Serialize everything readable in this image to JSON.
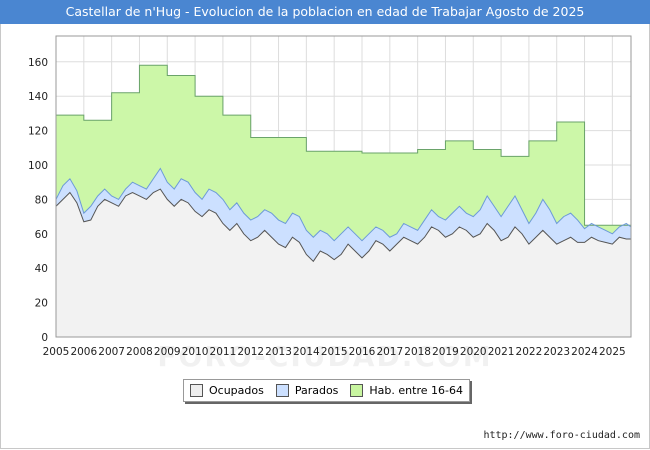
{
  "title": "Castellar de n'Hug - Evolucion de la poblacion en edad de Trabajar Agosto de 2025",
  "watermark": "FORO-CIUDAD.COM",
  "site_url": "http://www.foro-ciudad.com",
  "legend": [
    {
      "label": "Ocupados",
      "color": "#eeeeee"
    },
    {
      "label": "Parados",
      "color": "#cce0ff"
    },
    {
      "label": "Hab. entre 16-64",
      "color": "#c8f5a0"
    }
  ],
  "chart_data": {
    "type": "area",
    "xlim": [
      2005,
      2025.67
    ],
    "ylim": [
      0,
      175
    ],
    "y_ticks": [
      0,
      20,
      40,
      60,
      80,
      100,
      120,
      140,
      160
    ],
    "x_ticks": [
      "2005",
      "2006",
      "2007",
      "2008",
      "2009",
      "2010",
      "2011",
      "2012",
      "2013",
      "2014",
      "2015",
      "2016",
      "2017",
      "2018",
      "2019",
      "2020",
      "2021",
      "2022",
      "2023",
      "2024",
      "2025"
    ],
    "grid": true,
    "colors": {
      "habitantes_fill": "#ccf7a8",
      "habitantes_line": "#6aa36a",
      "parados_fill": "#cce0ff",
      "parados_line": "#6c9ad8",
      "ocupados_fill": "#f2f2f2",
      "ocupados_line": "#555555"
    },
    "series": [
      {
        "name": "Hab. entre 16-64",
        "kind": "step",
        "values": [
          [
            2005,
            129
          ],
          [
            2006,
            126
          ],
          [
            2007,
            142
          ],
          [
            2008,
            158
          ],
          [
            2009,
            152
          ],
          [
            2010,
            140
          ],
          [
            2011,
            129
          ],
          [
            2012,
            116
          ],
          [
            2013,
            116
          ],
          [
            2014,
            108
          ],
          [
            2015,
            108
          ],
          [
            2016,
            107
          ],
          [
            2017,
            107
          ],
          [
            2018,
            109
          ],
          [
            2019,
            114
          ],
          [
            2020,
            109
          ],
          [
            2021,
            105
          ],
          [
            2022,
            114
          ],
          [
            2023,
            125
          ],
          [
            2024,
            65
          ],
          [
            2025,
            65
          ],
          [
            2025.67,
            65
          ]
        ]
      },
      {
        "name": "Parados",
        "kind": "line",
        "values": [
          [
            2005.0,
            80
          ],
          [
            2005.25,
            88
          ],
          [
            2005.5,
            92
          ],
          [
            2005.75,
            85
          ],
          [
            2006.0,
            72
          ],
          [
            2006.25,
            76
          ],
          [
            2006.5,
            82
          ],
          [
            2006.75,
            86
          ],
          [
            2007.0,
            82
          ],
          [
            2007.25,
            80
          ],
          [
            2007.5,
            86
          ],
          [
            2007.75,
            90
          ],
          [
            2008.0,
            88
          ],
          [
            2008.25,
            86
          ],
          [
            2008.5,
            92
          ],
          [
            2008.75,
            98
          ],
          [
            2009.0,
            90
          ],
          [
            2009.25,
            86
          ],
          [
            2009.5,
            92
          ],
          [
            2009.75,
            90
          ],
          [
            2010.0,
            84
          ],
          [
            2010.25,
            80
          ],
          [
            2010.5,
            86
          ],
          [
            2010.75,
            84
          ],
          [
            2011.0,
            80
          ],
          [
            2011.25,
            74
          ],
          [
            2011.5,
            78
          ],
          [
            2011.75,
            72
          ],
          [
            2012.0,
            68
          ],
          [
            2012.25,
            70
          ],
          [
            2012.5,
            74
          ],
          [
            2012.75,
            72
          ],
          [
            2013.0,
            68
          ],
          [
            2013.25,
            66
          ],
          [
            2013.5,
            72
          ],
          [
            2013.75,
            70
          ],
          [
            2014.0,
            62
          ],
          [
            2014.25,
            58
          ],
          [
            2014.5,
            62
          ],
          [
            2014.75,
            60
          ],
          [
            2015.0,
            56
          ],
          [
            2015.25,
            60
          ],
          [
            2015.5,
            64
          ],
          [
            2015.75,
            60
          ],
          [
            2016.0,
            56
          ],
          [
            2016.25,
            60
          ],
          [
            2016.5,
            64
          ],
          [
            2016.75,
            62
          ],
          [
            2017.0,
            58
          ],
          [
            2017.25,
            60
          ],
          [
            2017.5,
            66
          ],
          [
            2017.75,
            64
          ],
          [
            2018.0,
            62
          ],
          [
            2018.25,
            68
          ],
          [
            2018.5,
            74
          ],
          [
            2018.75,
            70
          ],
          [
            2019.0,
            68
          ],
          [
            2019.25,
            72
          ],
          [
            2019.5,
            76
          ],
          [
            2019.75,
            72
          ],
          [
            2020.0,
            70
          ],
          [
            2020.25,
            74
          ],
          [
            2020.5,
            82
          ],
          [
            2020.75,
            76
          ],
          [
            2021.0,
            70
          ],
          [
            2021.25,
            76
          ],
          [
            2021.5,
            82
          ],
          [
            2021.75,
            74
          ],
          [
            2022.0,
            66
          ],
          [
            2022.25,
            72
          ],
          [
            2022.5,
            80
          ],
          [
            2022.75,
            74
          ],
          [
            2023.0,
            66
          ],
          [
            2023.25,
            70
          ],
          [
            2023.5,
            72
          ],
          [
            2023.75,
            68
          ],
          [
            2024.0,
            63
          ],
          [
            2024.25,
            66
          ],
          [
            2024.5,
            64
          ],
          [
            2024.75,
            62
          ],
          [
            2025.0,
            60
          ],
          [
            2025.25,
            64
          ],
          [
            2025.5,
            66
          ],
          [
            2025.67,
            64
          ]
        ]
      },
      {
        "name": "Ocupados",
        "kind": "line",
        "values": [
          [
            2005.0,
            76
          ],
          [
            2005.25,
            80
          ],
          [
            2005.5,
            84
          ],
          [
            2005.75,
            78
          ],
          [
            2006.0,
            67
          ],
          [
            2006.25,
            68
          ],
          [
            2006.5,
            76
          ],
          [
            2006.75,
            80
          ],
          [
            2007.0,
            78
          ],
          [
            2007.25,
            76
          ],
          [
            2007.5,
            82
          ],
          [
            2007.75,
            84
          ],
          [
            2008.0,
            82
          ],
          [
            2008.25,
            80
          ],
          [
            2008.5,
            84
          ],
          [
            2008.75,
            86
          ],
          [
            2009.0,
            80
          ],
          [
            2009.25,
            76
          ],
          [
            2009.5,
            80
          ],
          [
            2009.75,
            78
          ],
          [
            2010.0,
            73
          ],
          [
            2010.25,
            70
          ],
          [
            2010.5,
            74
          ],
          [
            2010.75,
            72
          ],
          [
            2011.0,
            66
          ],
          [
            2011.25,
            62
          ],
          [
            2011.5,
            66
          ],
          [
            2011.75,
            60
          ],
          [
            2012.0,
            56
          ],
          [
            2012.25,
            58
          ],
          [
            2012.5,
            62
          ],
          [
            2012.75,
            58
          ],
          [
            2013.0,
            54
          ],
          [
            2013.25,
            52
          ],
          [
            2013.5,
            58
          ],
          [
            2013.75,
            55
          ],
          [
            2014.0,
            48
          ],
          [
            2014.25,
            44
          ],
          [
            2014.5,
            50
          ],
          [
            2014.75,
            48
          ],
          [
            2015.0,
            45
          ],
          [
            2015.25,
            48
          ],
          [
            2015.5,
            54
          ],
          [
            2015.75,
            50
          ],
          [
            2016.0,
            46
          ],
          [
            2016.25,
            50
          ],
          [
            2016.5,
            56
          ],
          [
            2016.75,
            54
          ],
          [
            2017.0,
            50
          ],
          [
            2017.25,
            54
          ],
          [
            2017.5,
            58
          ],
          [
            2017.75,
            56
          ],
          [
            2018.0,
            54
          ],
          [
            2018.25,
            58
          ],
          [
            2018.5,
            64
          ],
          [
            2018.75,
            62
          ],
          [
            2019.0,
            58
          ],
          [
            2019.25,
            60
          ],
          [
            2019.5,
            64
          ],
          [
            2019.75,
            62
          ],
          [
            2020.0,
            58
          ],
          [
            2020.25,
            60
          ],
          [
            2020.5,
            66
          ],
          [
            2020.75,
            62
          ],
          [
            2021.0,
            56
          ],
          [
            2021.25,
            58
          ],
          [
            2021.5,
            64
          ],
          [
            2021.75,
            60
          ],
          [
            2022.0,
            54
          ],
          [
            2022.25,
            58
          ],
          [
            2022.5,
            62
          ],
          [
            2022.75,
            58
          ],
          [
            2023.0,
            54
          ],
          [
            2023.25,
            56
          ],
          [
            2023.5,
            58
          ],
          [
            2023.75,
            55
          ],
          [
            2024.0,
            55
          ],
          [
            2024.25,
            58
          ],
          [
            2024.5,
            56
          ],
          [
            2024.75,
            55
          ],
          [
            2025.0,
            54
          ],
          [
            2025.25,
            58
          ],
          [
            2025.5,
            57
          ],
          [
            2025.67,
            57
          ]
        ]
      }
    ]
  }
}
